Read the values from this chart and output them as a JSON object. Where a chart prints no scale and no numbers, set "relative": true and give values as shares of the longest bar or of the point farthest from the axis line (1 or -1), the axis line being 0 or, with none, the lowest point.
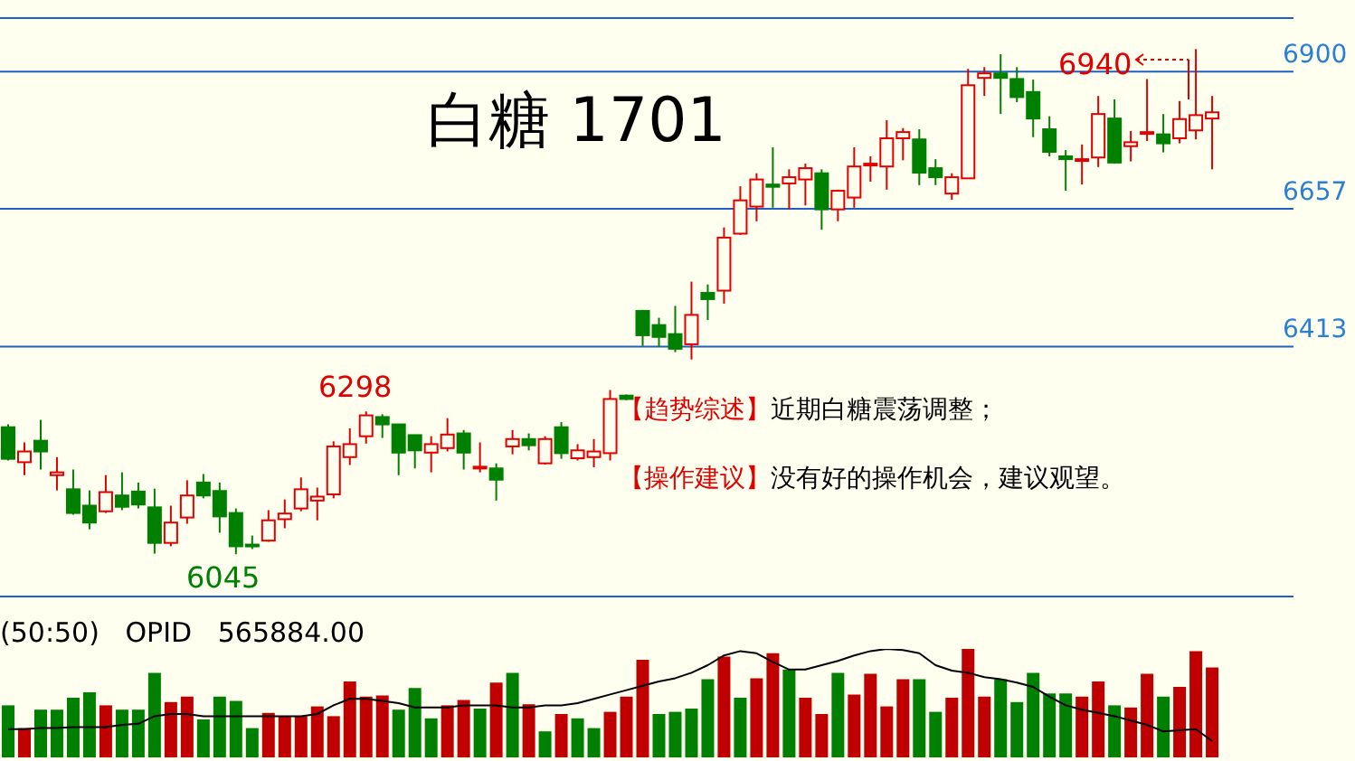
{
  "chart_data": [
    {
      "type": "candlestick",
      "title": "白糖  1701",
      "categories": [
        null,
        null,
        null,
        null,
        null,
        null,
        null,
        null,
        null,
        null,
        null,
        null,
        null,
        null,
        null,
        null,
        null,
        null,
        null,
        null,
        null,
        null,
        null,
        null,
        null,
        null,
        null,
        null,
        null,
        null,
        null,
        null,
        null,
        null,
        null,
        null,
        null,
        null,
        null,
        null,
        null,
        null,
        null,
        null,
        null,
        null,
        null,
        null,
        null,
        null,
        null,
        null,
        null,
        null,
        null,
        null,
        null,
        null,
        null,
        null,
        null,
        null,
        null,
        null,
        null,
        null,
        null,
        null,
        null,
        null,
        null,
        null,
        null,
        null,
        null
      ],
      "ohlc": [
        [
          6270,
          6275,
          6211,
          6214
        ],
        [
          6208,
          6243,
          6185,
          6227
        ],
        [
          6246,
          6283,
          6195,
          6227
        ],
        [
          6185,
          6217,
          6158,
          6190
        ],
        [
          6160,
          6195,
          6115,
          6118
        ],
        [
          6131,
          6158,
          6089,
          6101
        ],
        [
          6121,
          6185,
          6118,
          6155
        ],
        [
          6149,
          6190,
          6123,
          6129
        ],
        [
          6156,
          6172,
          6126,
          6133
        ],
        [
          6128,
          6161,
          6046,
          6065
        ],
        [
          6065,
          6131,
          6059,
          6101
        ],
        [
          6110,
          6176,
          6099,
          6149
        ],
        [
          6172,
          6187,
          6144,
          6149
        ],
        [
          6157,
          6172,
          6083,
          6112
        ],
        [
          6118,
          6126,
          6045,
          6059
        ],
        [
          6062,
          6078,
          6054,
          6061
        ],
        [
          6069,
          6123,
          6067,
          6105
        ],
        [
          6107,
          6142,
          6091,
          6117
        ],
        [
          6126,
          6181,
          6121,
          6160
        ],
        [
          6140,
          6163,
          6105,
          6147
        ],
        [
          6151,
          6245,
          6144,
          6236
        ],
        [
          6217,
          6268,
          6203,
          6240
        ],
        [
          6254,
          6298,
          6241,
          6291
        ],
        [
          6288,
          6293,
          6251,
          6275
        ],
        [
          6275,
          6275,
          6185,
          6225
        ],
        [
          6256,
          6256,
          6197,
          6229
        ],
        [
          6225,
          6254,
          6190,
          6240
        ],
        [
          6233,
          6286,
          6227,
          6257
        ],
        [
          6259,
          6265,
          6195,
          6225
        ],
        [
          6199,
          6243,
          6190,
          6200
        ],
        [
          6197,
          6206,
          6140,
          6177
        ],
        [
          6236,
          6265,
          6222,
          6249
        ],
        [
          6249,
          6259,
          6229,
          6238
        ],
        [
          6206,
          6254,
          6204,
          6249
        ],
        [
          6270,
          6279,
          6214,
          6224
        ],
        [
          6215,
          6240,
          6211,
          6229
        ],
        [
          6217,
          6249,
          6199,
          6227
        ],
        [
          6224,
          6336,
          6211,
          6320
        ],
        [
          6326,
          6328,
          6318,
          6320
        ],
        [
          6476,
          6478,
          6414,
          6433
        ],
        [
          6451,
          6464,
          6412,
          6430
        ],
        [
          6435,
          6485,
          6403,
          6409
        ],
        [
          6417,
          6528,
          6390,
          6469
        ],
        [
          6508,
          6523,
          6460,
          6497
        ],
        [
          6512,
          6624,
          6489,
          6606
        ],
        [
          6613,
          6697,
          6611,
          6672
        ],
        [
          6661,
          6720,
          6635,
          6709
        ],
        [
          6700,
          6766,
          6659,
          6696
        ],
        [
          6702,
          6727,
          6656,
          6713
        ],
        [
          6709,
          6737,
          6663,
          6729
        ],
        [
          6720,
          6727,
          6620,
          6656
        ],
        [
          6656,
          6691,
          6635,
          6689
        ],
        [
          6677,
          6766,
          6659,
          6732
        ],
        [
          6735,
          6750,
          6705,
          6737
        ],
        [
          6732,
          6814,
          6691,
          6782
        ],
        [
          6782,
          6800,
          6743,
          6793
        ],
        [
          6780,
          6798,
          6699,
          6721
        ],
        [
          6729,
          6745,
          6699,
          6713
        ],
        [
          6684,
          6720,
          6673,
          6713
        ],
        [
          6711,
          6905,
          6711,
          6876
        ],
        [
          6889,
          6908,
          6857,
          6897
        ],
        [
          6897,
          6931,
          6825,
          6889
        ],
        [
          6887,
          6908,
          6846,
          6855
        ],
        [
          6864,
          6886,
          6784,
          6817
        ],
        [
          6798,
          6821,
          6750,
          6758
        ],
        [
          6750,
          6761,
          6689,
          6745
        ],
        [
          6743,
          6771,
          6700,
          6745
        ],
        [
          6748,
          6857,
          6731,
          6825
        ],
        [
          6817,
          6851,
          6737,
          6739
        ],
        [
          6768,
          6795,
          6741,
          6775
        ],
        [
          6791,
          6887,
          6777,
          6793
        ],
        [
          6789,
          6825,
          6757,
          6773
        ],
        [
          6782,
          6848,
          6773,
          6816
        ],
        [
          6796,
          6940,
          6780,
          6823
        ],
        [
          6817,
          6857,
          6727,
          6828
        ]
      ],
      "colors": [
        "#008000",
        "#e00000",
        "#008000",
        "#e00000",
        "#008000",
        "#008000",
        "#e00000",
        "#008000",
        "#008000",
        "#008000",
        "#e00000",
        "#e00000",
        "#008000",
        "#008000",
        "#008000",
        "#008000",
        "#e00000",
        "#e00000",
        "#e00000",
        "#e00000",
        "#e00000",
        "#e00000",
        "#e00000",
        "#008000",
        "#008000",
        "#008000",
        "#e00000",
        "#e00000",
        "#008000",
        "#e00000",
        "#008000",
        "#e00000",
        "#008000",
        "#e00000",
        "#008000",
        "#e00000",
        "#e00000",
        "#e00000",
        "#008000",
        "#008000",
        "#008000",
        "#008000",
        "#e00000",
        "#008000",
        "#e00000",
        "#e00000",
        "#e00000",
        "#008000",
        "#e00000",
        "#e00000",
        "#008000",
        "#e00000",
        "#e00000",
        "#e00000",
        "#e00000",
        "#e00000",
        "#008000",
        "#008000",
        "#e00000",
        "#e00000",
        "#e00000",
        "#008000",
        "#008000",
        "#008000",
        "#008000",
        "#008000",
        "#e00000",
        "#e00000",
        "#008000",
        "#e00000",
        "#e00000",
        "#008000",
        "#e00000",
        "#e00000",
        "#e00000"
      ],
      "ylim": [
        5970,
        6995
      ],
      "yticks": [
        6413,
        6657,
        6900
      ],
      "grid": "y",
      "annotations": [
        {
          "text": "6298",
          "y": 6298
        },
        "6045",
        "6940",
        "【趋势综述】近期白糖震荡调整；",
        "【操作建议】没有好的操作机会，建议观望。"
      ]
    },
    {
      "type": "bar",
      "relative": true,
      "categories": [
        null,
        null,
        null,
        null,
        null,
        null,
        null,
        null,
        null,
        null,
        null,
        null,
        null,
        null,
        null,
        null,
        null,
        null,
        null,
        null,
        null,
        null,
        null,
        null,
        null,
        null,
        null,
        null,
        null,
        null,
        null,
        null,
        null,
        null,
        null,
        null,
        null,
        null,
        null,
        null,
        null,
        null,
        null,
        null,
        null,
        null,
        null,
        null,
        null,
        null,
        null,
        null,
        null,
        null,
        null,
        null,
        null,
        null,
        null,
        null,
        null,
        null,
        null,
        null,
        null,
        null,
        null,
        null,
        null,
        null,
        null,
        null,
        null,
        null,
        null
      ],
      "series": [
        {
          "type": "bar",
          "colors": [
            "#008000",
            "#c00000",
            "#008000",
            "#008000",
            "#008000",
            "#008000",
            "#c00000",
            "#008000",
            "#008000",
            "#008000",
            "#c00000",
            "#c00000",
            "#008000",
            "#008000",
            "#008000",
            "#008000",
            "#c00000",
            "#c00000",
            "#c00000",
            "#c00000",
            "#c00000",
            "#c00000",
            "#c00000",
            "#c00000",
            "#008000",
            "#008000",
            "#008000",
            "#c00000",
            "#c00000",
            "#008000",
            "#c00000",
            "#008000",
            "#c00000",
            "#008000",
            "#c00000",
            "#008000",
            "#008000",
            "#c00000",
            "#c00000",
            "#c00000",
            "#008000",
            "#008000",
            "#008000",
            "#008000",
            "#c00000",
            "#008000",
            "#c00000",
            "#c00000",
            "#008000",
            "#c00000",
            "#c00000",
            "#008000",
            "#c00000",
            "#c00000",
            "#c00000",
            "#c00000",
            "#008000",
            "#008000",
            "#c00000",
            "#c00000",
            "#c00000",
            "#008000",
            "#008000",
            "#008000",
            "#008000",
            "#008000",
            "#c00000",
            "#c00000",
            "#008000",
            "#c00000",
            "#c00000",
            "#008000",
            "#c00000",
            "#c00000",
            "#c00000"
          ],
          "values": [
            0.48,
            0.27,
            0.44,
            0.44,
            0.55,
            0.6,
            0.48,
            0.44,
            0.44,
            0.78,
            0.51,
            0.56,
            0.35,
            0.56,
            0.52,
            0.27,
            0.41,
            0.38,
            0.38,
            0.47,
            0.38,
            0.7,
            0.56,
            0.57,
            0.44,
            0.64,
            0.36,
            0.48,
            0.53,
            0.45,
            0.69,
            0.78,
            0.49,
            0.24,
            0.4,
            0.36,
            0.27,
            0.42,
            0.56,
            0.9,
            0.4,
            0.42,
            0.45,
            0.72,
            0.93,
            0.55,
            0.73,
            0.96,
            0.81,
            0.55,
            0.4,
            0.78,
            0.58,
            0.77,
            0.47,
            0.72,
            0.72,
            0.42,
            0.55,
            1,
            0.56,
            0.72,
            0.51,
            0.78,
            0.59,
            0.59,
            0.56,
            0.7,
            0.48,
            0.46,
            0.77,
            0.56,
            0.65,
            0.98,
            0.83
          ]
        },
        {
          "type": "line",
          "color": "#000000",
          "values": [
            0.26,
            0.26,
            0.27,
            0.27,
            0.28,
            0.28,
            0.28,
            0.3,
            0.31,
            0.38,
            0.4,
            0.4,
            0.38,
            0.38,
            0.38,
            0.38,
            0.38,
            0.38,
            0.38,
            0.4,
            0.48,
            0.54,
            0.54,
            0.52,
            0.5,
            0.46,
            0.46,
            0.46,
            0.48,
            0.48,
            0.48,
            0.46,
            0.46,
            0.48,
            0.48,
            0.5,
            0.54,
            0.58,
            0.62,
            0.66,
            0.7,
            0.73,
            0.78,
            0.85,
            0.94,
            0.98,
            0.96,
            0.88,
            0.81,
            0.81,
            0.85,
            0.89,
            0.94,
            0.98,
            1,
            0.99,
            0.96,
            0.85,
            0.8,
            0.78,
            0.74,
            0.72,
            0.69,
            0.65,
            0.56,
            0.48,
            0.44,
            0.41,
            0.38,
            0.34,
            0.3,
            0.24,
            0.25,
            0.26,
            0.15
          ]
        }
      ],
      "annotations": [
        "(50:50)   OPID   565884.00"
      ]
    }
  ]
}
